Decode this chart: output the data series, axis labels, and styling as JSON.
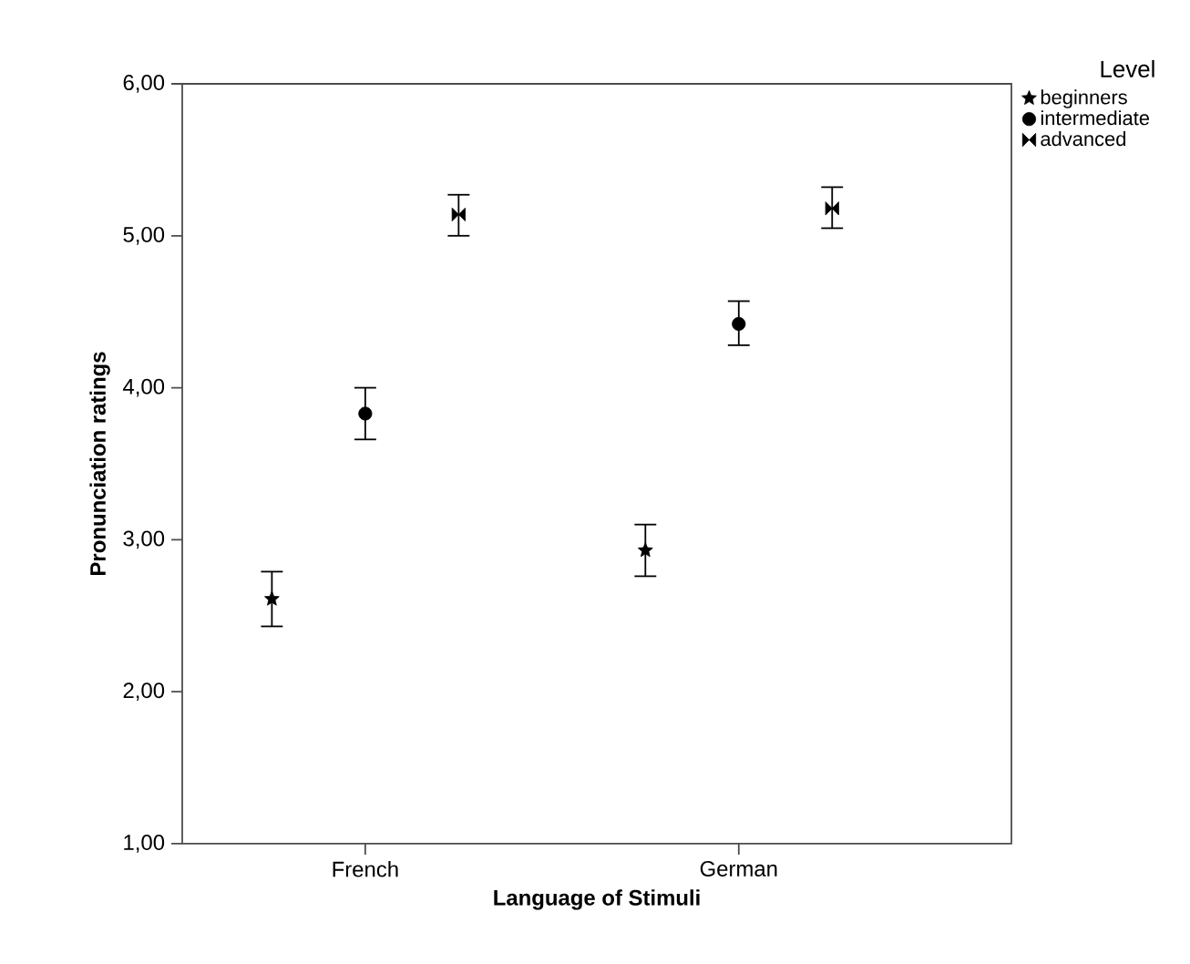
{
  "chart_data": {
    "type": "scatter",
    "xlabel": "Language of Stimuli",
    "ylabel": "Pronunciation ratings",
    "legend_title": "Level",
    "legend": "top right",
    "categories": [
      "French",
      "German"
    ],
    "ylim": [
      1,
      6
    ],
    "yticks": [
      {
        "value": 1,
        "label": "1,00"
      },
      {
        "value": 2,
        "label": "2,00"
      },
      {
        "value": 3,
        "label": "3,00"
      },
      {
        "value": 4,
        "label": "4,00"
      },
      {
        "value": 5,
        "label": "5,00"
      },
      {
        "value": 6,
        "label": "6,00"
      }
    ],
    "series": [
      {
        "name": "beginners",
        "color": "#000000",
        "marker": "star",
        "values": [
          2.61,
          2.93
        ],
        "errors": [
          [
            2.43,
            2.79
          ],
          [
            2.76,
            3.1
          ]
        ]
      },
      {
        "name": "intermediate",
        "color": "#000000",
        "marker": "circle",
        "values": [
          3.83,
          4.42
        ],
        "errors": [
          [
            3.66,
            4.0
          ],
          [
            4.28,
            4.57
          ]
        ]
      },
      {
        "name": "advanced",
        "color": "#000000",
        "values": [
          5.14,
          5.18
        ],
        "errors": [
          [
            5.0,
            5.27
          ],
          [
            5.05,
            5.32
          ]
        ]
      }
    ]
  }
}
